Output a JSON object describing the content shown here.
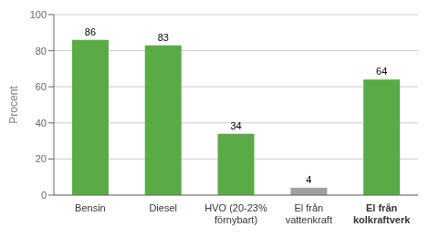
{
  "chart_data": {
    "type": "bar",
    "categories": [
      "Bensin",
      "Diesel",
      "HVO (20-23%\nförnybart)",
      "El från\nvattenkraft",
      "El från\nkolkraftverk"
    ],
    "values": [
      86,
      83,
      34,
      4,
      64
    ],
    "colors": [
      "#5aab46",
      "#5aab46",
      "#5aab46",
      "#a0a0a0",
      "#5aab46"
    ],
    "ylabel": "Procent",
    "ylim": [
      0,
      100
    ],
    "yticks": [
      0,
      20,
      40,
      60,
      80,
      100
    ],
    "grid": true,
    "data_labels": true
  }
}
